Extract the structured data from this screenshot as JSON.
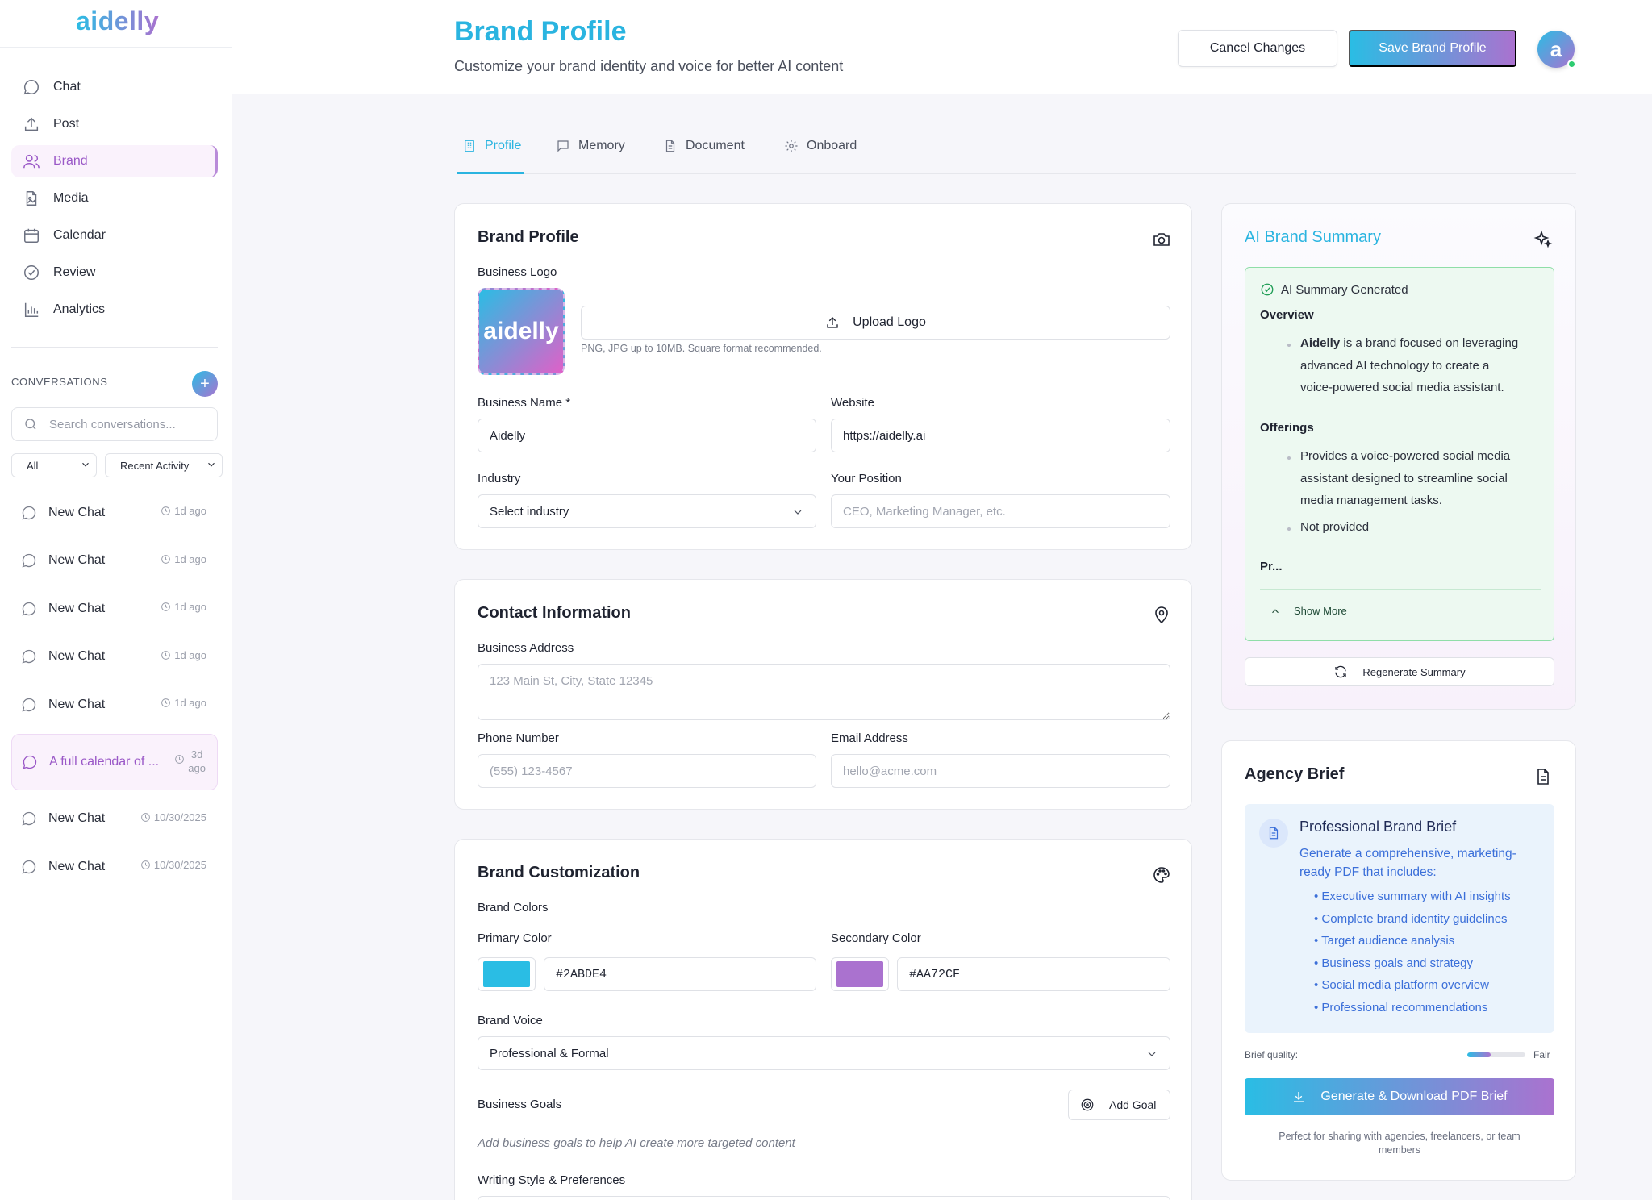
{
  "app": {
    "logo": "aidelly"
  },
  "sidebar": {
    "nav": [
      {
        "label": "Chat",
        "icon": "chat-bubble-icon"
      },
      {
        "label": "Post",
        "icon": "upload-icon"
      },
      {
        "label": "Brand",
        "icon": "users-icon"
      },
      {
        "label": "Media",
        "icon": "media-file-icon"
      },
      {
        "label": "Calendar",
        "icon": "calendar-icon"
      },
      {
        "label": "Review",
        "icon": "check-circle-icon"
      },
      {
        "label": "Analytics",
        "icon": "bar-chart-icon"
      }
    ],
    "active_nav": "Brand",
    "conversations_header": "CONVERSATIONS",
    "search_placeholder": "Search conversations...",
    "filter_all": "All",
    "filter_sort": "Recent Activity",
    "chats": [
      {
        "title": "New Chat",
        "time": "1d ago"
      },
      {
        "title": "New Chat",
        "time": "1d ago"
      },
      {
        "title": "New Chat",
        "time": "1d ago"
      },
      {
        "title": "New Chat",
        "time": "1d ago"
      },
      {
        "title": "New Chat",
        "time": "1d ago"
      },
      {
        "title": "A full calendar of ...",
        "time_line1": "3d",
        "time_line2": "ago",
        "active": true
      },
      {
        "title": "New Chat",
        "time": "10/30/2025"
      },
      {
        "title": "New Chat",
        "time": "10/30/2025"
      }
    ]
  },
  "header": {
    "title": "Brand Profile",
    "subtitle": "Customize your brand identity and voice for better AI content",
    "cancel_label": "Cancel Changes",
    "save_label": "Save Brand Profile",
    "avatar_letter": "a"
  },
  "tabs": [
    {
      "label": "Profile",
      "active": true
    },
    {
      "label": "Memory"
    },
    {
      "label": "Document"
    },
    {
      "label": "Onboard"
    }
  ],
  "brand_profile": {
    "title": "Brand Profile",
    "logo_label": "Business Logo",
    "logo_text": "aidelly",
    "upload_label": "Upload Logo",
    "upload_hint": "PNG, JPG up to 10MB. Square format recommended.",
    "name_label": "Business Name *",
    "name_value": "Aidelly",
    "website_label": "Website",
    "website_value": "https://aidelly.ai",
    "industry_label": "Industry",
    "industry_value": "Select industry",
    "position_label": "Your Position",
    "position_placeholder": "CEO, Marketing Manager, etc."
  },
  "contact": {
    "title": "Contact Information",
    "address_label": "Business Address",
    "address_placeholder": "123 Main St, City, State 12345",
    "phone_label": "Phone Number",
    "phone_placeholder": "(555) 123-4567",
    "email_label": "Email Address",
    "email_placeholder": "hello@acme.com"
  },
  "customization": {
    "title": "Brand Customization",
    "colors_label": "Brand Colors",
    "primary_label": "Primary Color",
    "primary_value": "#2ABDE4",
    "secondary_label": "Secondary Color",
    "secondary_value": "#AA72CF",
    "voice_label": "Brand Voice",
    "voice_value": "Professional & Formal",
    "goals_label": "Business Goals",
    "add_goal_label": "Add Goal",
    "goals_note": "Add business goals to help AI create more targeted content",
    "writing_label": "Writing Style & Preferences"
  },
  "ai_summary": {
    "title": "AI Brand Summary",
    "generated_label": "AI Summary Generated",
    "overview_heading": "Overview",
    "overview_bold": "Aidelly",
    "overview_line1_rest": " is a brand focused on leveraging",
    "overview_line2": "advanced AI technology to create a",
    "overview_line3": "voice-powered social media assistant.",
    "offerings_heading": "Offerings",
    "offering1_line1": "Provides a voice-powered social media",
    "offering1_line2": "assistant designed to streamline social",
    "offering1_line3": "media management tasks.",
    "offering2": "Not provided",
    "truncated_heading": "Pr...",
    "show_more": "Show More",
    "regenerate_label": "Regenerate Summary"
  },
  "agency_brief": {
    "title": "Agency Brief",
    "box_title": "Professional Brand Brief",
    "box_desc_line1": "Generate a comprehensive, marketing-",
    "box_desc_line2": "ready PDF that includes:",
    "items": [
      "• Executive summary with AI insights",
      "• Complete brand identity guidelines",
      "• Target audience analysis",
      "• Business goals and strategy",
      "• Social media platform overview",
      "• Professional recommendations"
    ],
    "quality_label": "Brief quality:",
    "quality_value": "Fair",
    "quality_fraction": 0.4,
    "generate_label": "Generate & Download PDF Brief",
    "foot_line1": "Perfect for sharing with agencies, freelancers, or team",
    "foot_line2": "members"
  },
  "colors": {
    "primary": "#2ABDE4",
    "secondary": "#AA72CF",
    "success": "#2ECC71"
  }
}
